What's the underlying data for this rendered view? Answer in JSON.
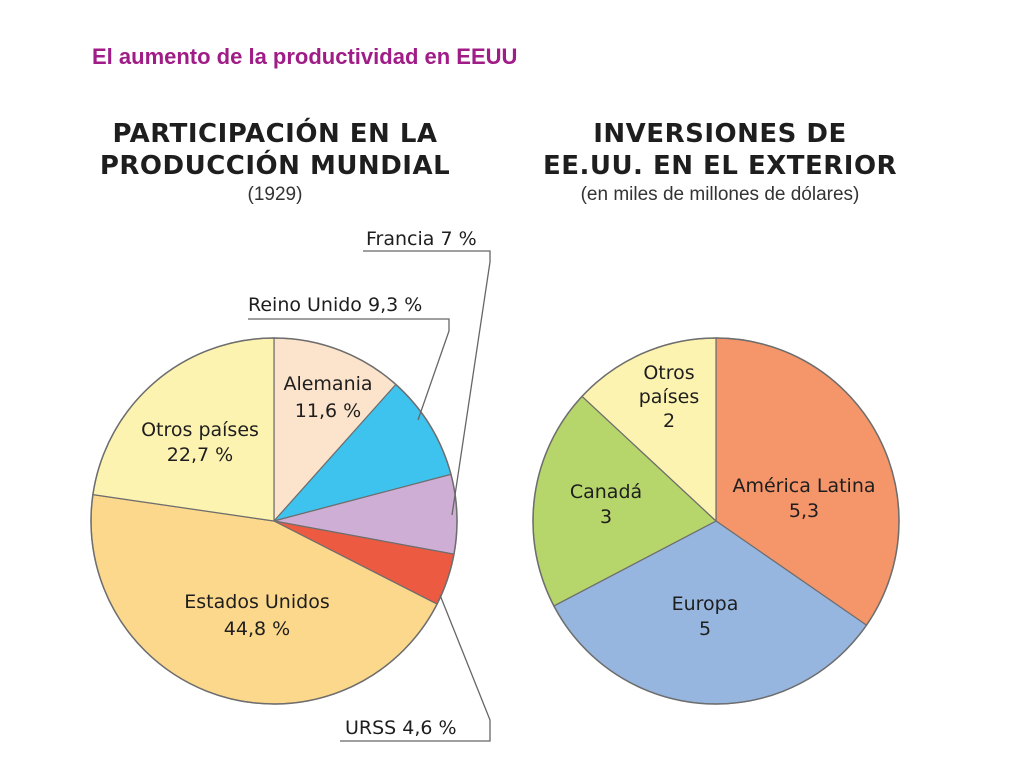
{
  "heading": "El aumento de la productividad en EEUU",
  "chart_data": [
    {
      "type": "pie",
      "title_lines": [
        "PARTICIPACIÓN EN LA",
        "PRODUCCIÓN MUNDIAL"
      ],
      "subtitle": "(1929)",
      "slices": [
        {
          "name": "Alemania",
          "value": 11.6,
          "label": "11,6 %",
          "color": "#fbe3cc"
        },
        {
          "name": "Reino Unido",
          "value": 9.3,
          "label": "9,3 %",
          "color": "#3ec3ee"
        },
        {
          "name": "Francia",
          "value": 7,
          "label": "7 %",
          "color": "#cfaed6"
        },
        {
          "name": "URSS",
          "value": 4.6,
          "label": "4,6 %",
          "color": "#ec5a42"
        },
        {
          "name": "Estados Unidos",
          "value": 44.8,
          "label": "44,8 %",
          "color": "#fcd88c"
        },
        {
          "name": "Otros países",
          "value": 22.7,
          "label": "22,7 %",
          "color": "#fdf3b0"
        }
      ]
    },
    {
      "type": "pie",
      "title_lines": [
        "INVERSIONES DE",
        "EE.UU. EN EL EXTERIOR"
      ],
      "subtitle": "(en miles de millones de dólares)",
      "slices": [
        {
          "name": "América Latina",
          "value": 5.3,
          "label": "5,3",
          "color": "#f4956a"
        },
        {
          "name": "Europa",
          "value": 5,
          "label": "5",
          "color": "#96b6e0"
        },
        {
          "name": "Canadá",
          "value": 3,
          "label": "3",
          "color": "#b6d56a"
        },
        {
          "name": "Otros países",
          "value": 2,
          "label": "2",
          "color": "#fdf3b0"
        }
      ]
    }
  ]
}
